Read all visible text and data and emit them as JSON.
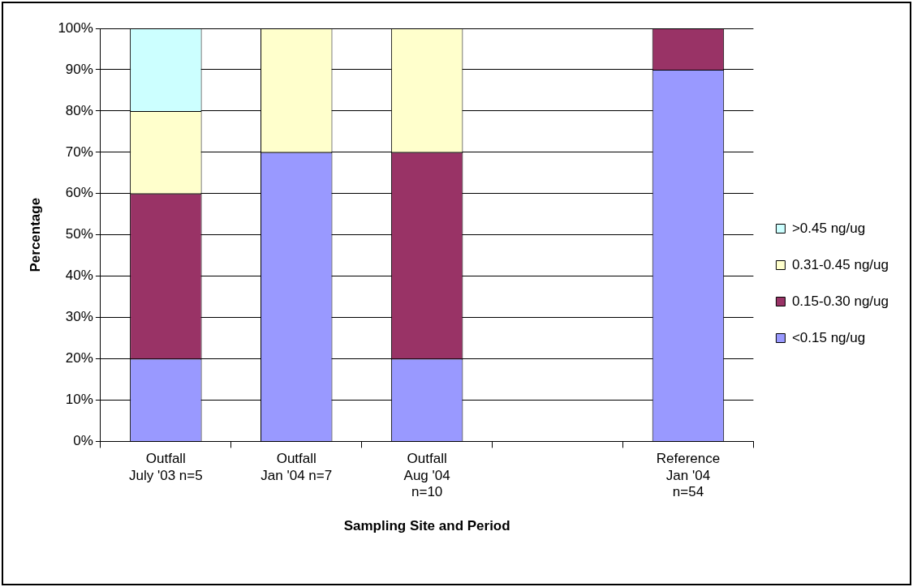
{
  "chart_data": {
    "type": "bar",
    "stacked": true,
    "xlabel": "Sampling Site and Period",
    "ylabel": "Percentage",
    "categories": [
      "Outfall\nJuly '03 n=5",
      "Outfall\nJan '04 n=7",
      "Outfall\nAug '04\nn=10",
      null,
      "Reference\nJan '04\nn=54"
    ],
    "series": [
      {
        "name": "<0.15 ng/ug",
        "color": "#9999ff",
        "values": [
          20,
          70,
          20,
          null,
          90
        ]
      },
      {
        "name": "0.15-0.30 ng/ug",
        "color": "#993366",
        "values": [
          40,
          0,
          50,
          null,
          10
        ]
      },
      {
        "name": "0.31-0.45 ng/ug",
        "color": "#ffffcc",
        "values": [
          20,
          30,
          30,
          null,
          0
        ]
      },
      {
        "name": ">0.45 ng/ug",
        "color": "#ccffff",
        "values": [
          20,
          0,
          0,
          null,
          0
        ]
      }
    ],
    "ylim": [
      0,
      100
    ],
    "yticks": [
      {
        "value": 0,
        "label": "0%"
      },
      {
        "value": 10,
        "label": "10%"
      },
      {
        "value": 20,
        "label": "20%"
      },
      {
        "value": 30,
        "label": "30%"
      },
      {
        "value": 40,
        "label": "40%"
      },
      {
        "value": 50,
        "label": "50%"
      },
      {
        "value": 60,
        "label": "60%"
      },
      {
        "value": 70,
        "label": "70%"
      },
      {
        "value": 80,
        "label": "80%"
      },
      {
        "value": 90,
        "label": "90%"
      },
      {
        "value": 100,
        "label": "100%"
      }
    ],
    "grid": "y",
    "legend": "right"
  }
}
